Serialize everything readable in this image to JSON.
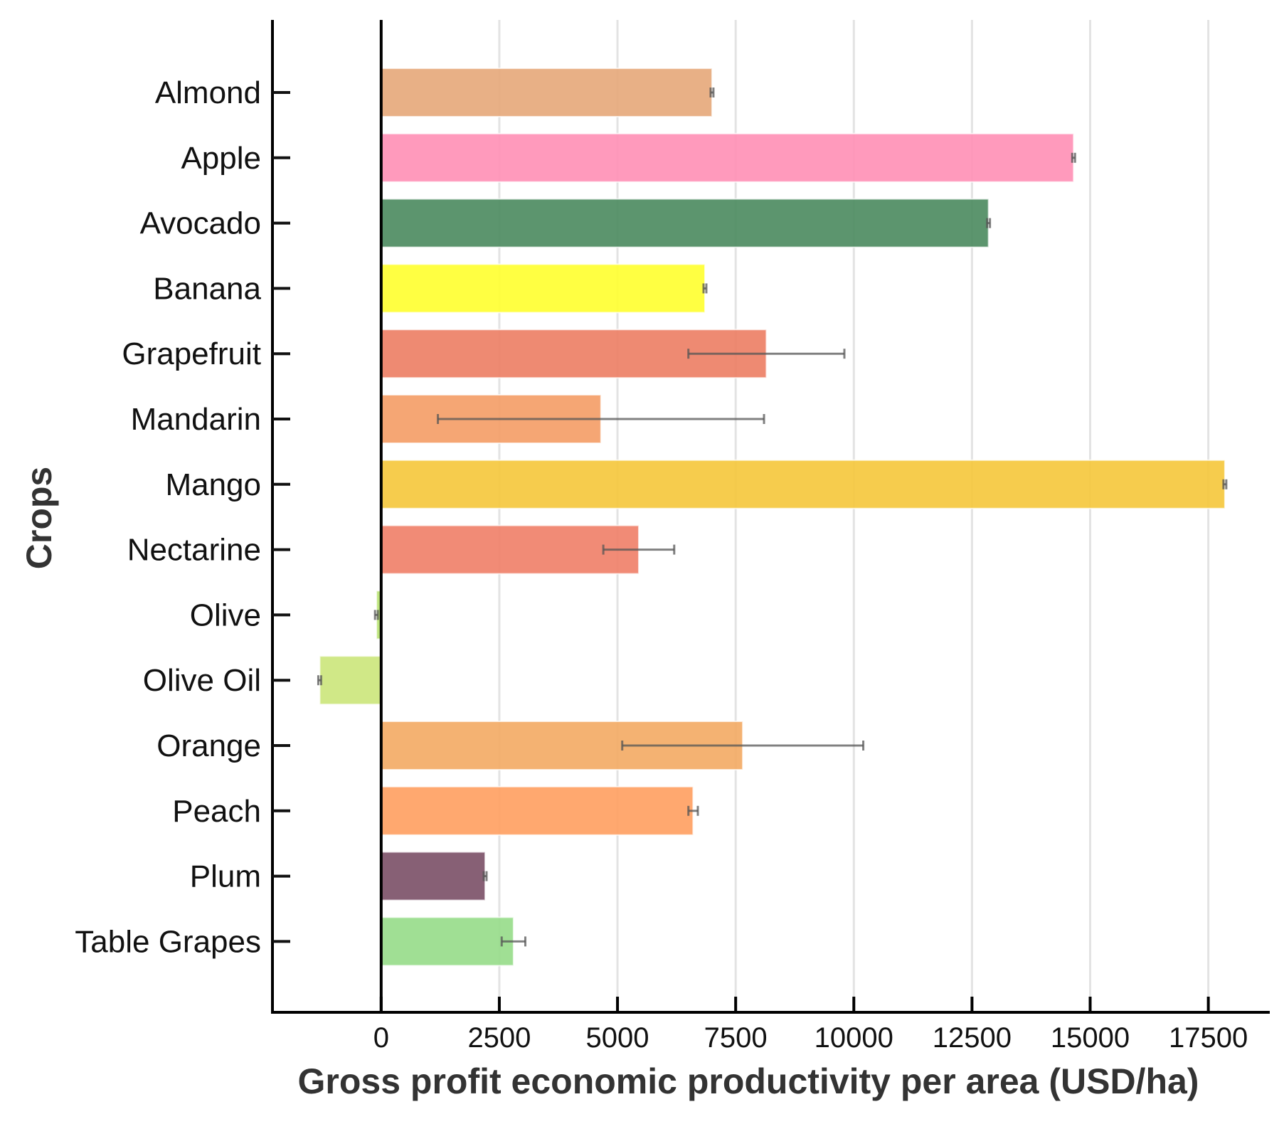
{
  "chart_data": {
    "type": "bar",
    "orientation": "horizontal",
    "title": "",
    "xlabel": "Gross profit economic productivity per area (USD/ha)",
    "ylabel": "Crops",
    "xlim": [
      -2300,
      18800
    ],
    "xticks": [
      0,
      2500,
      5000,
      7500,
      10000,
      12500,
      15000,
      17500
    ],
    "grid": "vertical",
    "legend": "none",
    "series": [
      {
        "values": [
          7000,
          14650,
          12850,
          6850,
          8150,
          4650,
          17850,
          5450,
          -100,
          -1300,
          7650,
          6600,
          2200,
          2800
        ],
        "errors": [
          30,
          30,
          30,
          30,
          1650,
          3450,
          30,
          750,
          30,
          30,
          2550,
          100,
          30,
          250
        ]
      }
    ],
    "categories": [
      "Almond",
      "Apple",
      "Avocado",
      "Banana",
      "Grapefruit",
      "Mandarin",
      "Mango",
      "Nectarine",
      "Olive",
      "Olive Oil",
      "Orange",
      "Peach",
      "Plum",
      "Table Grapes"
    ],
    "colors": [
      "#E6A779",
      "#FF8FB5",
      "#4A8A5E",
      "#FFFF2E",
      "#EC7D63",
      "#F49C65",
      "#F5C73A",
      "#F07E67",
      "#B7E270",
      "#CBE67A",
      "#F3AA63",
      "#FF9E5F",
      "#7A4F66",
      "#96DB88"
    ],
    "error_color": "#555555"
  }
}
